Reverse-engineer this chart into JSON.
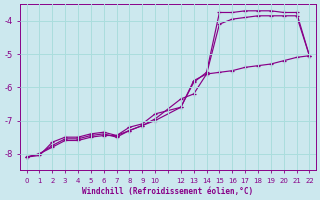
{
  "xlabel": "Windchill (Refroidissement éolien,°C)",
  "bg_color": "#cce8ee",
  "line_color": "#880088",
  "grid_color": "#aadddd",
  "xlim": [
    -0.5,
    22.5
  ],
  "ylim": [
    -8.5,
    -3.5
  ],
  "yticks": [
    -8,
    -7,
    -6,
    -5,
    -4
  ],
  "xtick_labels": [
    "0",
    "1",
    "2",
    "3",
    "4",
    "5",
    "6",
    "7",
    "8",
    "9",
    "10",
    "",
    "12",
    "13",
    "14",
    "15",
    "16",
    "17",
    "18",
    "19",
    "20",
    "21",
    "22"
  ],
  "xtick_vals": [
    0,
    1,
    2,
    3,
    4,
    5,
    6,
    7,
    8,
    9,
    10,
    11,
    12,
    13,
    14,
    15,
    16,
    17,
    18,
    19,
    20,
    21,
    22
  ],
  "series": [
    {
      "x": [
        0,
        1,
        2,
        3,
        4,
        5,
        6,
        7,
        8,
        9,
        10,
        12,
        13,
        14,
        15,
        16,
        17,
        18,
        19,
        20,
        21,
        22
      ],
      "y": [
        -8.1,
        -8.0,
        -7.75,
        -7.55,
        -7.55,
        -7.45,
        -7.4,
        -7.5,
        -7.3,
        -7.15,
        -7.0,
        -6.6,
        -5.85,
        -5.55,
        -3.75,
        -3.75,
        -3.7,
        -3.7,
        -3.7,
        -3.75,
        -3.75,
        -5.05
      ]
    },
    {
      "x": [
        0,
        1,
        2,
        3,
        4,
        5,
        6,
        7,
        8,
        9,
        10,
        12,
        13,
        14,
        15,
        16,
        17,
        18,
        19,
        20,
        21,
        22
      ],
      "y": [
        -8.1,
        -8.0,
        -7.8,
        -7.6,
        -7.6,
        -7.5,
        -7.45,
        -7.45,
        -7.3,
        -7.15,
        -6.95,
        -6.35,
        -6.2,
        -5.6,
        -4.1,
        -3.95,
        -3.9,
        -3.85,
        -3.85,
        -3.85,
        -3.85,
        -5.05
      ]
    },
    {
      "x": [
        0,
        1,
        2,
        3,
        4,
        5,
        6,
        7,
        8,
        9,
        10,
        12,
        13,
        14,
        15,
        16,
        17,
        18,
        19,
        20,
        21,
        22
      ],
      "y": [
        -8.1,
        -8.05,
        -7.65,
        -7.5,
        -7.5,
        -7.4,
        -7.35,
        -7.45,
        -7.2,
        -7.1,
        -6.8,
        -6.6,
        -5.8,
        -5.6,
        -5.55,
        -5.5,
        -5.4,
        -5.35,
        -5.3,
        -5.2,
        -5.1,
        -5.05
      ]
    }
  ]
}
